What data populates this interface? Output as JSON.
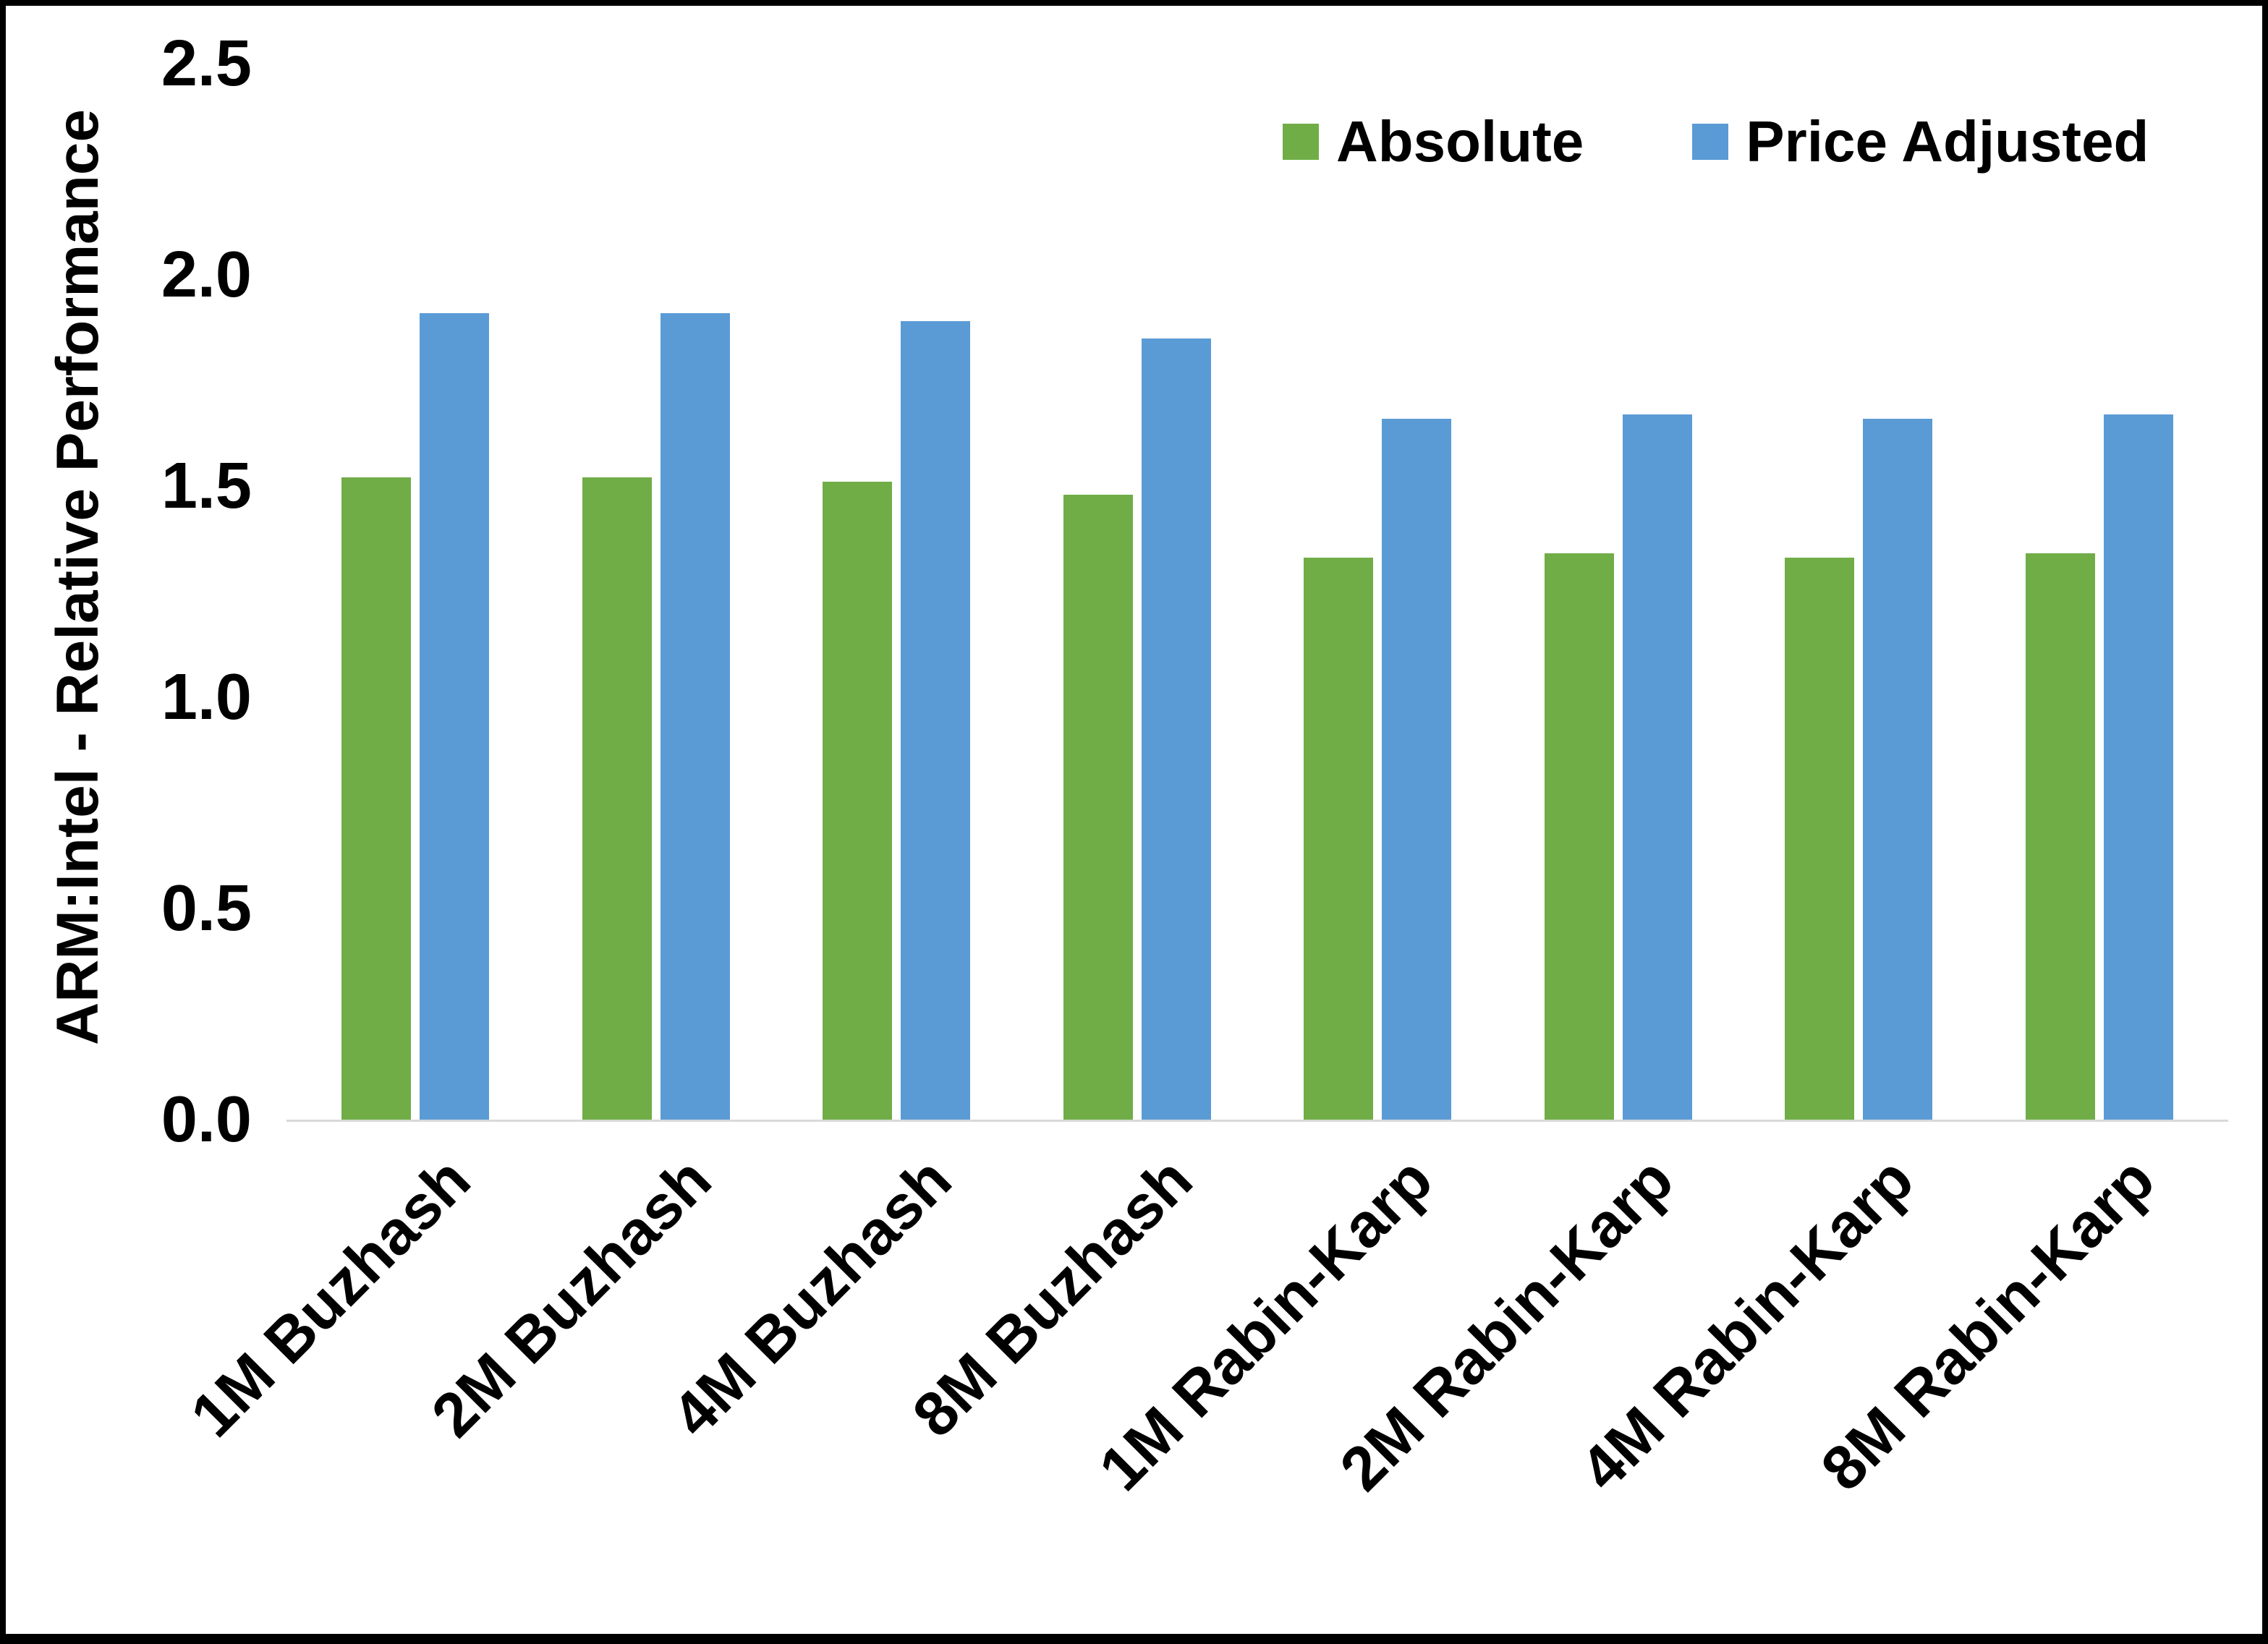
{
  "chart_data": {
    "type": "bar",
    "title": "",
    "xlabel": "",
    "ylabel": "ARM:Intel - Relative Performance",
    "ylim": [
      0,
      2.5
    ],
    "yticks": [
      0.0,
      0.5,
      1.0,
      1.5,
      2.0,
      2.5
    ],
    "ytick_labels": [
      "0.0",
      "0.5",
      "1.0",
      "1.5",
      "2.0",
      "2.5"
    ],
    "grid": false,
    "legend_position": "top-inside-right",
    "categories": [
      "1M Buzhash",
      "2M Buzhash",
      "4M Buzhash",
      "8M Buzhash",
      "1M Rabin-Karp",
      "2M Rabin-Karp",
      "4M Rabin-Karp",
      "8M Rabin-Karp"
    ],
    "series": [
      {
        "name": "Absolute",
        "color": "#70AD47",
        "values": [
          1.52,
          1.52,
          1.51,
          1.48,
          1.33,
          1.34,
          1.33,
          1.34
        ]
      },
      {
        "name": "Price Adjusted",
        "color": "#5B9BD5",
        "values": [
          1.91,
          1.91,
          1.89,
          1.85,
          1.66,
          1.67,
          1.66,
          1.67
        ]
      }
    ]
  },
  "colors": {
    "background": "#FFFFFF",
    "frame_border": "#000000",
    "axis_line": "#D9D9D9",
    "text": "#000000",
    "series_absolute": "#70AD47",
    "series_price_adjusted": "#5B9BD5"
  }
}
